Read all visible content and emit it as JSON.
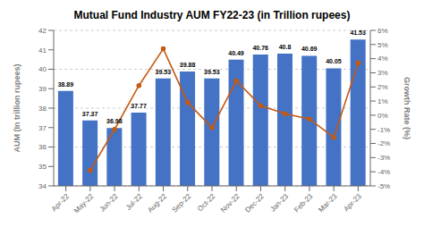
{
  "chart_data": {
    "type": "bar",
    "title": "Mutual Fund Industry AUM FY22-23 (in Trillion rupees)",
    "categories": [
      "Apr-22",
      "May-22",
      "Jun-22",
      "Jul-22",
      "Aug-22",
      "Sep-22",
      "Oct-22",
      "Nov-22",
      "Dec-22",
      "Jan-23",
      "Feb-23",
      "Mar-23",
      "Apr-23"
    ],
    "series": [
      {
        "type": "bar",
        "color": "#4472C4",
        "values": [
          38.89,
          37.37,
          36.98,
          37.77,
          39.53,
          39.88,
          39.53,
          40.49,
          40.76,
          40.8,
          40.69,
          40.05,
          41.53
        ],
        "data_labels": true
      },
      {
        "type": "line",
        "axis": "y2",
        "color": "#C55A11",
        "marker": "circle",
        "values": [
          null,
          -3.9,
          -1.0,
          2.1,
          4.7,
          0.9,
          -0.88,
          2.43,
          0.67,
          0.1,
          -0.27,
          -1.57,
          3.7
        ]
      }
    ],
    "ylabel": "AUM (In trillion rupees)",
    "y2label": "Growth Rate (%)",
    "ylim": [
      34,
      42
    ],
    "yticks": [
      34,
      35,
      36,
      37,
      38,
      39,
      40,
      41,
      42
    ],
    "y2lim": [
      -5,
      6
    ],
    "y2ticks": [
      {
        "value": -5,
        "label": "-5%"
      },
      {
        "value": -4,
        "label": "-4%"
      },
      {
        "value": -3,
        "label": "-3%"
      },
      {
        "value": -2,
        "label": "-2%"
      },
      {
        "value": -1,
        "label": "-1%"
      },
      {
        "value": 0,
        "label": "0%"
      },
      {
        "value": 1,
        "label": "1%"
      },
      {
        "value": 2,
        "label": "2%"
      },
      {
        "value": 3,
        "label": "3%"
      },
      {
        "value": 4,
        "label": "4%"
      },
      {
        "value": 5,
        "label": "5%"
      },
      {
        "value": 6,
        "label": "6%"
      }
    ],
    "grid": true
  }
}
